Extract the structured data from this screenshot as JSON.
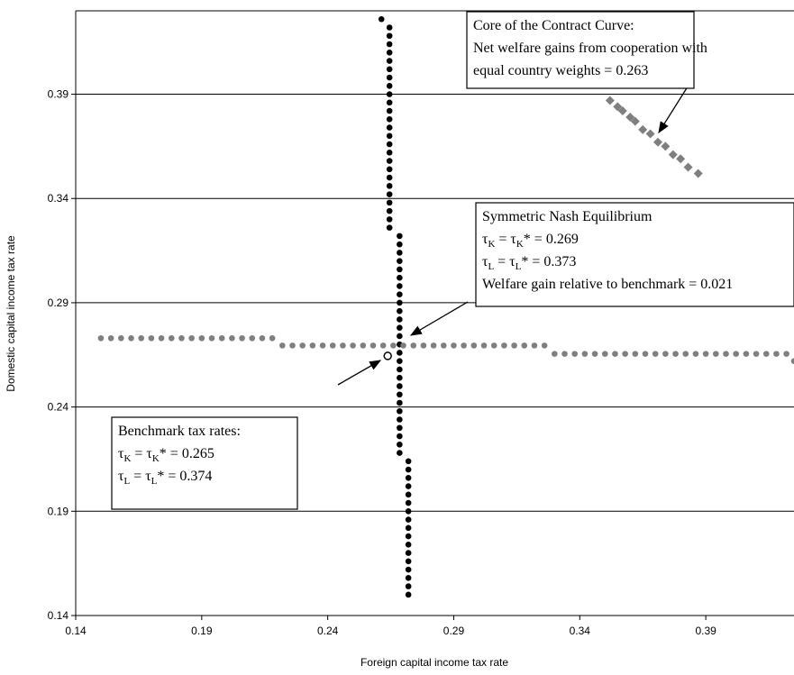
{
  "chart_data": {
    "type": "scatter",
    "xlabel": "Foreign capital income tax rate",
    "ylabel": "Domestic capital income tax rate",
    "xlim": [
      0.14,
      0.425
    ],
    "ylim": [
      0.14,
      0.43
    ],
    "xticks": [
      0.14,
      0.19,
      0.24,
      0.29,
      0.34,
      0.39
    ],
    "yticks": [
      0.14,
      0.19,
      0.24,
      0.29,
      0.34,
      0.39
    ],
    "grid": true,
    "series": [
      {
        "color": "#000000",
        "marker": "circle",
        "x": [
          0.272,
          0.272,
          0.272,
          0.272,
          0.272,
          0.272,
          0.272,
          0.272,
          0.272,
          0.272,
          0.272,
          0.272,
          0.272,
          0.272,
          0.272,
          0.272,
          0.272,
          0.2685,
          0.2685,
          0.2685,
          0.2685,
          0.2685,
          0.2685,
          0.2685,
          0.2685,
          0.2685,
          0.2685,
          0.2685,
          0.2685,
          0.2685,
          0.2685,
          0.2685,
          0.2685,
          0.2685,
          0.2685,
          0.2685,
          0.2685,
          0.2685,
          0.2685,
          0.2685,
          0.2685,
          0.2685,
          0.2685,
          0.2685,
          0.2645,
          0.2645,
          0.2645,
          0.2645,
          0.2645,
          0.2645,
          0.2645,
          0.2645,
          0.2645,
          0.2645,
          0.2645,
          0.2645,
          0.2645,
          0.2645,
          0.2645,
          0.2645,
          0.2645,
          0.2645,
          0.2645,
          0.2645,
          0.2645,
          0.2645,
          0.2645,
          0.2645,
          0.2645,
          0.2613
        ],
        "values": [
          0.15,
          0.154,
          0.158,
          0.162,
          0.166,
          0.17,
          0.174,
          0.178,
          0.182,
          0.186,
          0.19,
          0.194,
          0.198,
          0.202,
          0.206,
          0.21,
          0.214,
          0.218,
          0.222,
          0.226,
          0.23,
          0.234,
          0.238,
          0.242,
          0.246,
          0.25,
          0.254,
          0.258,
          0.262,
          0.266,
          0.27,
          0.274,
          0.278,
          0.282,
          0.286,
          0.29,
          0.294,
          0.298,
          0.302,
          0.306,
          0.31,
          0.314,
          0.318,
          0.322,
          0.326,
          0.33,
          0.334,
          0.338,
          0.342,
          0.346,
          0.35,
          0.354,
          0.358,
          0.362,
          0.366,
          0.37,
          0.374,
          0.378,
          0.382,
          0.386,
          0.39,
          0.394,
          0.398,
          0.402,
          0.406,
          0.41,
          0.414,
          0.418,
          0.422,
          0.426
        ]
      },
      {
        "color": "#7f7f7f",
        "marker": "circle",
        "x": [
          0.15,
          0.154,
          0.158,
          0.162,
          0.166,
          0.17,
          0.174,
          0.178,
          0.182,
          0.186,
          0.19,
          0.194,
          0.198,
          0.202,
          0.206,
          0.21,
          0.214,
          0.218,
          0.222,
          0.226,
          0.23,
          0.234,
          0.238,
          0.242,
          0.246,
          0.25,
          0.254,
          0.258,
          0.262,
          0.266,
          0.27,
          0.274,
          0.278,
          0.282,
          0.286,
          0.29,
          0.294,
          0.298,
          0.302,
          0.306,
          0.31,
          0.314,
          0.318,
          0.322,
          0.326,
          0.33,
          0.334,
          0.338,
          0.342,
          0.346,
          0.35,
          0.354,
          0.358,
          0.362,
          0.366,
          0.37,
          0.374,
          0.378,
          0.382,
          0.386,
          0.39,
          0.394,
          0.398,
          0.402,
          0.406,
          0.41,
          0.414,
          0.418,
          0.422,
          0.425
        ],
        "values": [
          0.273,
          0.273,
          0.273,
          0.273,
          0.273,
          0.273,
          0.273,
          0.273,
          0.273,
          0.273,
          0.273,
          0.273,
          0.273,
          0.273,
          0.273,
          0.273,
          0.273,
          0.273,
          0.2695,
          0.2695,
          0.2695,
          0.2695,
          0.2695,
          0.2695,
          0.2695,
          0.2695,
          0.2695,
          0.2695,
          0.2695,
          0.2695,
          0.2695,
          0.2695,
          0.2695,
          0.2695,
          0.2695,
          0.2695,
          0.2695,
          0.2695,
          0.2695,
          0.2695,
          0.2695,
          0.2695,
          0.2695,
          0.2695,
          0.2695,
          0.2655,
          0.2655,
          0.2655,
          0.2655,
          0.2655,
          0.2655,
          0.2655,
          0.2655,
          0.2655,
          0.2655,
          0.2655,
          0.2655,
          0.2655,
          0.2655,
          0.2655,
          0.2655,
          0.2655,
          0.2655,
          0.2655,
          0.2655,
          0.2655,
          0.2655,
          0.2655,
          0.2655,
          0.262
        ]
      },
      {
        "color": "#7f7f7f",
        "marker": "diamond",
        "x": [
          0.352,
          0.355,
          0.357,
          0.36,
          0.362,
          0.365,
          0.368,
          0.371,
          0.374,
          0.377,
          0.38,
          0.383,
          0.387
        ],
        "values": [
          0.387,
          0.384,
          0.382,
          0.379,
          0.377,
          0.373,
          0.371,
          0.367,
          0.365,
          0.361,
          0.359,
          0.355,
          0.352
        ]
      },
      {
        "color": "#000000",
        "marker": "open-circle",
        "x": [
          0.2638
        ],
        "values": [
          0.2645
        ]
      }
    ],
    "annotations": [
      {
        "lines": [
          [
            "Core of the Contract Curve:"
          ],
          [
            "Net welfare gains from cooperation with"
          ],
          [
            "equal country weights = 0.263"
          ]
        ]
      },
      {
        "lines": [
          [
            "Symmetric Nash Equilibrium"
          ],
          [
            "τ",
            "K",
            " = τ",
            "K",
            "* = 0.269"
          ],
          [
            "τ",
            "L",
            " = τ",
            "L",
            "* = 0.373"
          ],
          [
            "Welfare gain relative to benchmark = 0.021"
          ]
        ]
      },
      {
        "lines": [
          [
            "Benchmark tax rates:"
          ],
          [
            "τ",
            "K",
            " = τ",
            "K",
            "* = 0.265"
          ],
          [
            "τ",
            "L",
            " = τ",
            "L",
            "* = 0.374"
          ]
        ]
      }
    ]
  }
}
